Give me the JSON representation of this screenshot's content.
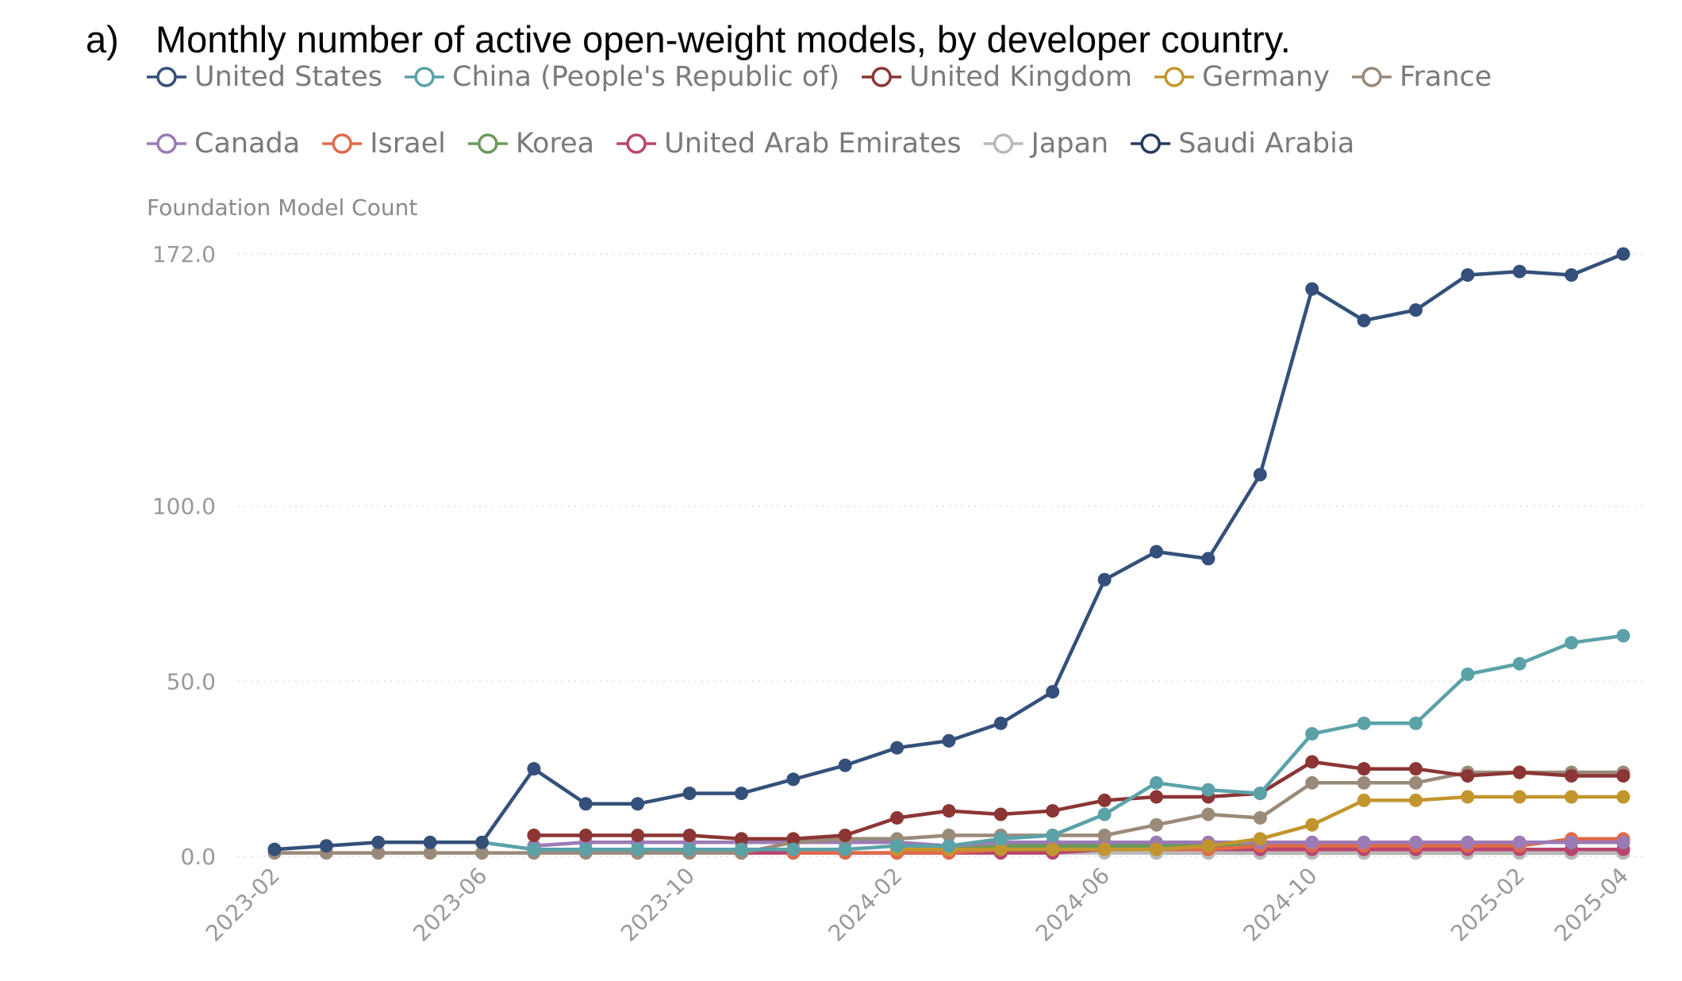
{
  "figure": {
    "label": "a)",
    "title": "Monthly number of active open-weight models, by developer country."
  },
  "chart_data": {
    "type": "line",
    "title": "Monthly number of active open-weight models, by developer country.",
    "ylabel": "Foundation Model Count",
    "xlabel": "",
    "ylim": [
      0,
      172
    ],
    "yticks": [
      {
        "value": 0,
        "label": "0.0"
      },
      {
        "value": 50,
        "label": "50.0"
      },
      {
        "value": 100,
        "label": "100.0"
      },
      {
        "value": 172,
        "label": "172.0"
      }
    ],
    "x": [
      "2023-02",
      "2023-03",
      "2023-04",
      "2023-05",
      "2023-06",
      "2023-07",
      "2023-08",
      "2023-09",
      "2023-10",
      "2023-11",
      "2023-12",
      "2024-01",
      "2024-02",
      "2024-03",
      "2024-04",
      "2024-05",
      "2024-06",
      "2024-07",
      "2024-08",
      "2024-09",
      "2024-10",
      "2024-11",
      "2024-12",
      "2025-01",
      "2025-02",
      "2025-03",
      "2025-04"
    ],
    "xtick_labels": [
      "2023-02",
      "2023-06",
      "2023-10",
      "2024-02",
      "2024-06",
      "2024-10",
      "2025-02",
      "2025-04"
    ],
    "grid": "horizontal dotted",
    "legend": "top",
    "series": [
      {
        "name": "United States",
        "color": "#34507a",
        "values": [
          2,
          3,
          4,
          4,
          4,
          25,
          15,
          15,
          18,
          18,
          22,
          26,
          31,
          33,
          38,
          47,
          79,
          87,
          85,
          109,
          162,
          153,
          156,
          166,
          167,
          166,
          172
        ]
      },
      {
        "name": "China (People's Republic of)",
        "color": "#5aa2a8",
        "values": [
          null,
          null,
          null,
          null,
          4,
          2,
          2,
          2,
          2,
          2,
          2,
          2,
          3,
          3,
          5,
          6,
          12,
          21,
          19,
          18,
          35,
          38,
          38,
          52,
          55,
          61,
          63
        ]
      },
      {
        "name": "United Kingdom",
        "color": "#8c3535",
        "values": [
          null,
          null,
          null,
          null,
          null,
          6,
          6,
          6,
          6,
          5,
          5,
          6,
          11,
          13,
          12,
          13,
          16,
          17,
          17,
          18,
          27,
          25,
          25,
          23,
          24,
          23,
          23
        ]
      },
      {
        "name": "Germany",
        "color": "#c2962e",
        "values": [
          null,
          null,
          null,
          null,
          null,
          null,
          null,
          null,
          null,
          null,
          null,
          null,
          2,
          2,
          2,
          2,
          2,
          2,
          3,
          5,
          9,
          16,
          16,
          17,
          17,
          17,
          17
        ]
      },
      {
        "name": "France",
        "color": "#9a8a7a",
        "values": [
          1,
          1,
          1,
          1,
          1,
          1,
          1,
          1,
          1,
          1,
          4,
          5,
          5,
          6,
          6,
          6,
          6,
          9,
          12,
          11,
          21,
          21,
          21,
          24,
          24,
          24,
          24
        ]
      },
      {
        "name": "Canada",
        "color": "#9b7bb5",
        "values": [
          null,
          null,
          null,
          null,
          null,
          3,
          4,
          4,
          4,
          4,
          4,
          4,
          4,
          3,
          4,
          4,
          4,
          4,
          4,
          4,
          4,
          4,
          4,
          4,
          4,
          4,
          4
        ]
      },
      {
        "name": "Israel",
        "color": "#e06a4a",
        "values": [
          null,
          null,
          null,
          null,
          null,
          null,
          null,
          null,
          null,
          null,
          1,
          1,
          1,
          1,
          2,
          2,
          2,
          2,
          2,
          3,
          3,
          3,
          3,
          3,
          3,
          5,
          5
        ]
      },
      {
        "name": "Korea",
        "color": "#6a9a5a",
        "values": [
          null,
          null,
          null,
          null,
          null,
          null,
          null,
          null,
          null,
          null,
          null,
          null,
          2,
          2,
          3,
          3,
          3,
          3,
          3,
          3,
          4,
          4,
          4,
          4,
          4,
          4,
          4
        ]
      },
      {
        "name": "United Arab Emirates",
        "color": "#b8456e",
        "values": [
          null,
          null,
          null,
          null,
          null,
          2,
          2,
          2,
          2,
          1,
          1,
          1,
          1,
          1,
          1,
          1,
          2,
          2,
          2,
          2,
          2,
          2,
          2,
          2,
          2,
          2,
          2
        ]
      },
      {
        "name": "Japan",
        "color": "#b9b9b9",
        "values": [
          null,
          null,
          null,
          null,
          null,
          null,
          null,
          null,
          null,
          null,
          null,
          null,
          null,
          null,
          null,
          1,
          1,
          1,
          1,
          1,
          1,
          1,
          1,
          1,
          1,
          1,
          1
        ]
      },
      {
        "name": "Saudi Arabia",
        "color": "#243a5e",
        "values": [
          null,
          null,
          null,
          null,
          null,
          null,
          null,
          null,
          null,
          null,
          null,
          null,
          null,
          null,
          null,
          null,
          null,
          1,
          1,
          1,
          1,
          1,
          1,
          1,
          1,
          1,
          1
        ]
      }
    ]
  }
}
